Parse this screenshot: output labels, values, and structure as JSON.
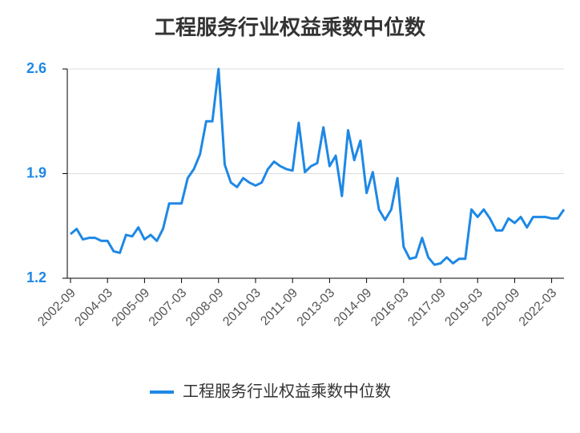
{
  "chart_data": {
    "type": "line",
    "title": "工程服务行业权益乘数中位数",
    "categories": [
      "2002-09",
      null,
      null,
      null,
      null,
      null,
      "2004-03",
      null,
      null,
      null,
      null,
      null,
      "2005-09",
      null,
      null,
      null,
      null,
      null,
      "2007-03",
      null,
      null,
      null,
      null,
      null,
      "2008-09",
      null,
      null,
      null,
      null,
      null,
      "2010-03",
      null,
      null,
      null,
      null,
      null,
      "2011-09",
      null,
      null,
      null,
      null,
      null,
      "2013-03",
      null,
      null,
      null,
      null,
      null,
      "2014-09",
      null,
      null,
      null,
      null,
      null,
      "2016-03",
      null,
      null,
      null,
      null,
      null,
      "2017-09",
      null,
      null,
      null,
      null,
      null,
      "2019-03",
      null,
      null,
      null,
      null,
      null,
      "2020-09",
      null,
      null,
      null,
      null,
      null,
      "2022-03",
      null,
      null
    ],
    "series": [
      {
        "name": "工程服务行业权益乘数中位数",
        "color": "#1e88e5",
        "values": [
          1.495,
          1.53,
          1.46,
          1.47,
          1.47,
          1.45,
          1.45,
          1.38,
          1.37,
          1.49,
          1.48,
          1.54,
          1.46,
          1.49,
          1.45,
          1.53,
          1.7,
          1.7,
          1.7,
          1.87,
          1.93,
          2.03,
          2.25,
          2.25,
          2.6,
          1.96,
          1.84,
          1.81,
          1.87,
          1.84,
          1.82,
          1.84,
          1.93,
          1.98,
          1.95,
          1.93,
          1.92,
          2.24,
          1.91,
          1.95,
          1.97,
          2.21,
          1.95,
          2.02,
          1.75,
          2.19,
          1.99,
          2.12,
          1.77,
          1.91,
          1.66,
          1.59,
          1.66,
          1.87,
          1.41,
          1.33,
          1.34,
          1.47,
          1.34,
          1.29,
          1.3,
          1.34,
          1.3,
          1.33,
          1.33,
          1.66,
          1.61,
          1.66,
          1.6,
          1.52,
          1.52,
          1.6,
          1.57,
          1.61,
          1.54,
          1.61,
          1.61,
          1.61,
          1.6,
          1.6,
          1.66
        ]
      }
    ],
    "ylim": [
      1.2,
      2.6
    ],
    "yticks": [
      1.2,
      1.9,
      2.6
    ],
    "grid": true
  }
}
